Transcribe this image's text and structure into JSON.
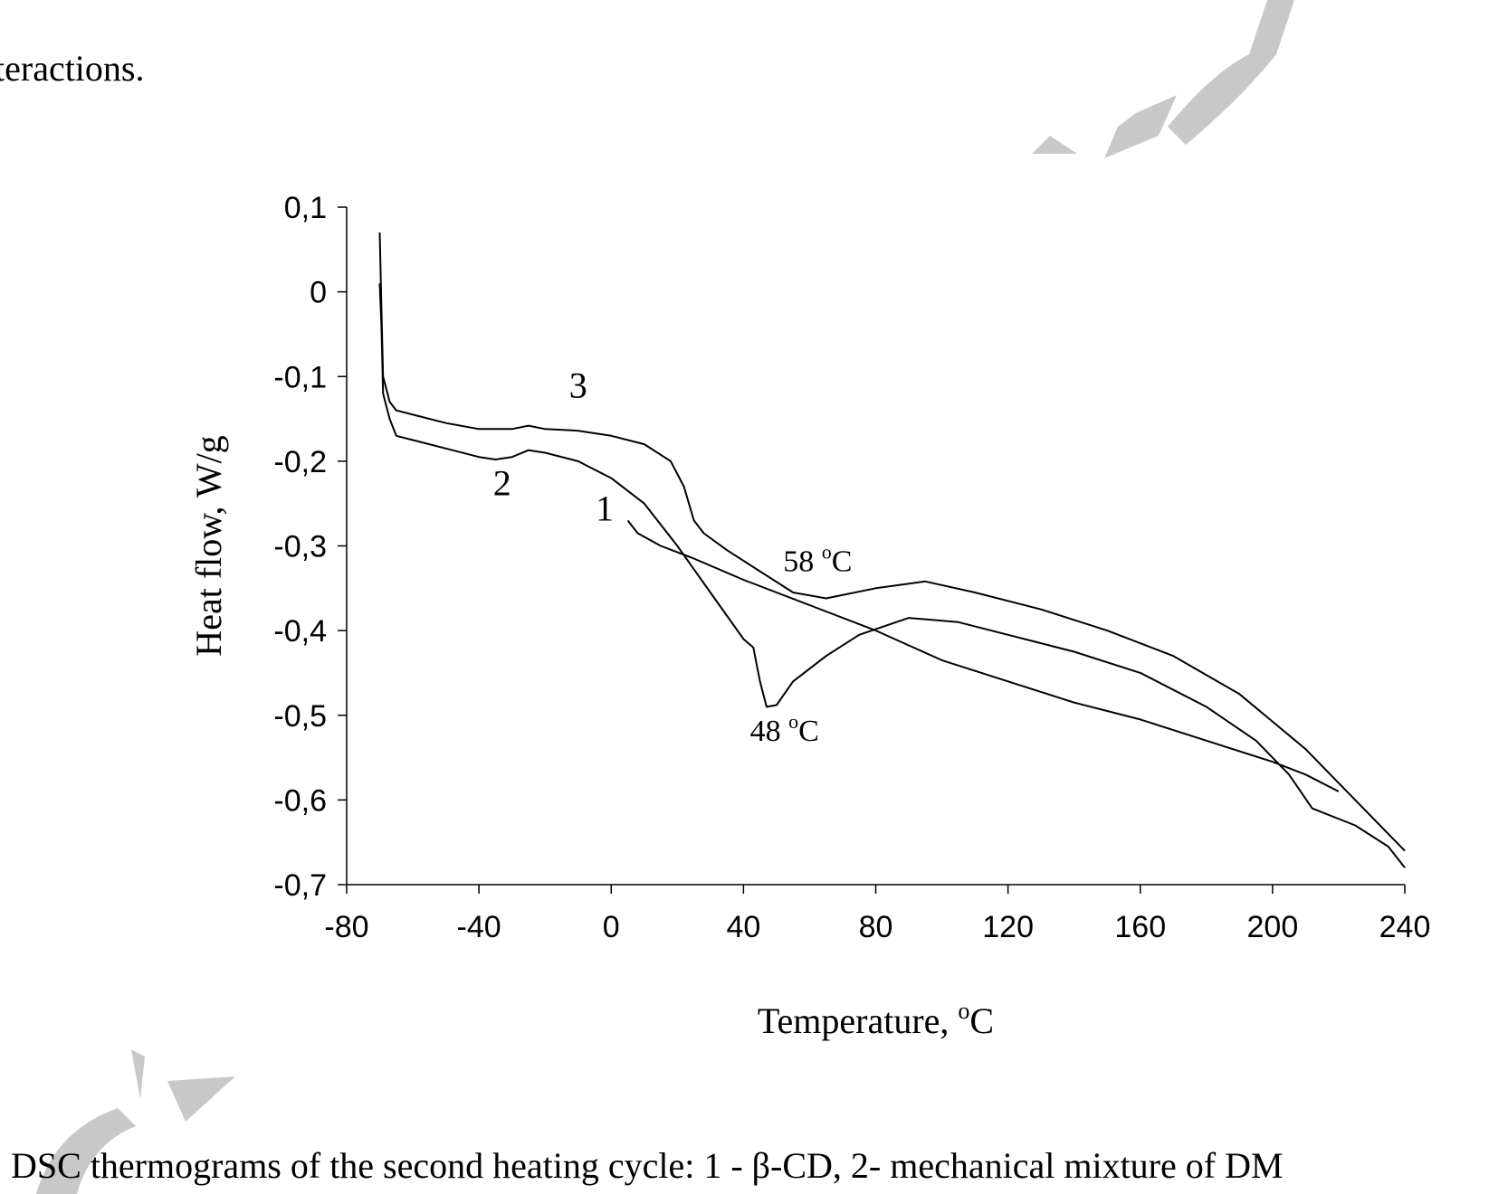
{
  "page": {
    "top_text": "teractions.",
    "caption": "DSC thermograms of the second heating cycle: 1 - β-CD, 2- mechanical mixture of DM"
  },
  "colors": {
    "line": "#000000",
    "watermark": "#c8c8c8",
    "background": "#ffffff"
  },
  "chart_data": {
    "type": "line",
    "title": "",
    "xlabel": "Temperature, ",
    "xlabel_unit_sup": "o",
    "xlabel_unit": "C",
    "ylabel": "Heat flow, W/g",
    "xlim": [
      -80,
      240
    ],
    "ylim": [
      -0.7,
      0.1
    ],
    "x_ticks": [
      -80,
      -40,
      0,
      40,
      80,
      120,
      160,
      200,
      240
    ],
    "x_tick_labels": [
      "-80",
      "-40",
      "0",
      "40",
      "80",
      "120",
      "160",
      "200",
      "240"
    ],
    "y_ticks": [
      0.1,
      0,
      -0.1,
      -0.2,
      -0.3,
      -0.4,
      -0.5,
      -0.6,
      -0.7
    ],
    "y_tick_labels": [
      "0,1",
      "0",
      "-0,1",
      "-0,2",
      "-0,3",
      "-0,4",
      "-0,5",
      "-0,6",
      "-0,7"
    ],
    "grid": false,
    "series": [
      {
        "label": "1",
        "points": [
          [
            5,
            -0.27
          ],
          [
            8,
            -0.285
          ],
          [
            15,
            -0.3
          ],
          [
            25,
            -0.315
          ],
          [
            40,
            -0.34
          ],
          [
            60,
            -0.37
          ],
          [
            80,
            -0.4
          ],
          [
            100,
            -0.435
          ],
          [
            120,
            -0.46
          ],
          [
            140,
            -0.485
          ],
          [
            160,
            -0.505
          ],
          [
            180,
            -0.53
          ],
          [
            200,
            -0.555
          ],
          [
            210,
            -0.57
          ],
          [
            220,
            -0.59
          ]
        ]
      },
      {
        "label": "2",
        "points": [
          [
            -70,
            0.01
          ],
          [
            -69.5,
            -0.04
          ],
          [
            -69,
            -0.12
          ],
          [
            -67,
            -0.15
          ],
          [
            -65,
            -0.17
          ],
          [
            -60,
            -0.175
          ],
          [
            -50,
            -0.185
          ],
          [
            -40,
            -0.195
          ],
          [
            -35,
            -0.198
          ],
          [
            -30,
            -0.195
          ],
          [
            -25,
            -0.187
          ],
          [
            -20,
            -0.19
          ],
          [
            -10,
            -0.2
          ],
          [
            0,
            -0.22
          ],
          [
            10,
            -0.25
          ],
          [
            20,
            -0.3
          ],
          [
            30,
            -0.355
          ],
          [
            40,
            -0.41
          ],
          [
            43,
            -0.42
          ],
          [
            45,
            -0.46
          ],
          [
            47,
            -0.49
          ],
          [
            50,
            -0.488
          ],
          [
            55,
            -0.46
          ],
          [
            65,
            -0.43
          ],
          [
            75,
            -0.405
          ],
          [
            90,
            -0.385
          ],
          [
            105,
            -0.39
          ],
          [
            120,
            -0.405
          ],
          [
            140,
            -0.425
          ],
          [
            160,
            -0.45
          ],
          [
            180,
            -0.49
          ],
          [
            195,
            -0.53
          ],
          [
            205,
            -0.57
          ],
          [
            212,
            -0.61
          ],
          [
            225,
            -0.63
          ],
          [
            235,
            -0.655
          ],
          [
            240,
            -0.68
          ]
        ]
      },
      {
        "label": "3",
        "points": [
          [
            -70,
            0.07
          ],
          [
            -69.5,
            -0.02
          ],
          [
            -69,
            -0.1
          ],
          [
            -67,
            -0.13
          ],
          [
            -65,
            -0.14
          ],
          [
            -60,
            -0.145
          ],
          [
            -50,
            -0.155
          ],
          [
            -40,
            -0.162
          ],
          [
            -30,
            -0.162
          ],
          [
            -25,
            -0.158
          ],
          [
            -20,
            -0.162
          ],
          [
            -10,
            -0.164
          ],
          [
            0,
            -0.17
          ],
          [
            10,
            -0.18
          ],
          [
            18,
            -0.2
          ],
          [
            22,
            -0.23
          ],
          [
            25,
            -0.27
          ],
          [
            28,
            -0.285
          ],
          [
            35,
            -0.305
          ],
          [
            45,
            -0.33
          ],
          [
            55,
            -0.355
          ],
          [
            65,
            -0.362
          ],
          [
            80,
            -0.35
          ],
          [
            95,
            -0.342
          ],
          [
            110,
            -0.355
          ],
          [
            130,
            -0.375
          ],
          [
            150,
            -0.4
          ],
          [
            170,
            -0.43
          ],
          [
            190,
            -0.475
          ],
          [
            210,
            -0.54
          ],
          [
            225,
            -0.6
          ],
          [
            240,
            -0.66
          ]
        ]
      }
    ],
    "series_labels": [
      {
        "text": "1",
        "x": -2,
        "y": -0.27
      },
      {
        "text": "2",
        "x": -33,
        "y": -0.24
      },
      {
        "text": "3",
        "x": -10,
        "y": -0.125
      }
    ],
    "annotations": [
      {
        "text": "58 ",
        "sup": "o",
        "unit": "C",
        "x": 52,
        "y": -0.33
      },
      {
        "text": "48 ",
        "sup": "o",
        "unit": "C",
        "x": 42,
        "y": -0.53
      }
    ]
  }
}
